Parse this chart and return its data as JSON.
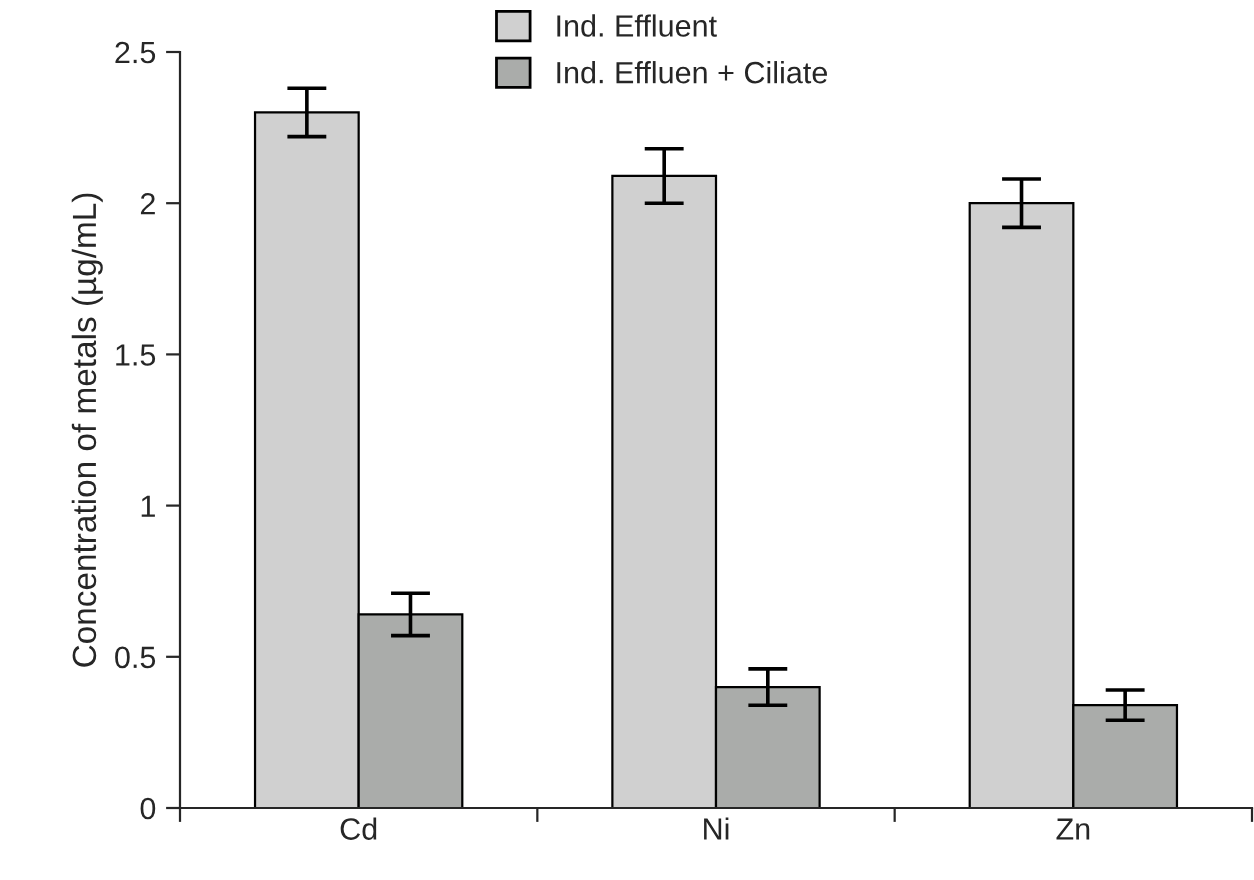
{
  "chart_data": {
    "type": "bar",
    "ylabel": "Concentration of metals (µg/mL)",
    "categories": [
      "Cd",
      "Ni",
      "Zn"
    ],
    "series": [
      {
        "name": "Ind. Effluent",
        "color": "#d0d0d0",
        "values": [
          2.3,
          2.09,
          2.0
        ],
        "errors": [
          0.08,
          0.09,
          0.08
        ]
      },
      {
        "name": "Ind. Effluen + Ciliate",
        "color": "#aaacaa",
        "values": [
          0.64,
          0.4,
          0.34
        ],
        "errors": [
          0.07,
          0.06,
          0.05
        ]
      }
    ],
    "ylim": [
      0,
      2.5
    ],
    "yticks": [
      0,
      0.5,
      1,
      1.5,
      2,
      2.5
    ],
    "grid": false,
    "legend": "top"
  }
}
